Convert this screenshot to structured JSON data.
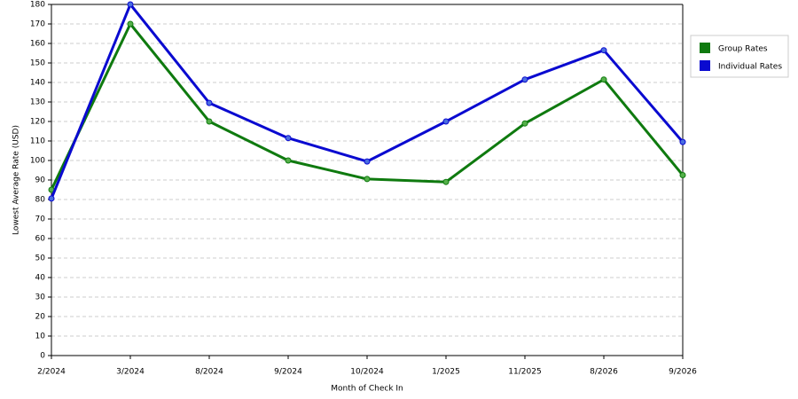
{
  "chart_data": {
    "type": "line",
    "x_label": "Month of Check In",
    "y_label": "Lowest Average Rate (USD)",
    "categories": [
      "2/2024",
      "3/2024",
      "8/2024",
      "9/2024",
      "10/2024",
      "1/2025",
      "11/2025",
      "8/2026",
      "9/2026"
    ],
    "series": [
      {
        "name": "Group Rates",
        "color": "#0f7a0f",
        "marker": "#55b04a",
        "values": [
          85,
          170,
          120,
          100,
          90.5,
          89,
          119,
          141.5,
          92.5
        ]
      },
      {
        "name": "Individual Rates",
        "color": "#0a0ad0",
        "marker": "#4a6ee0",
        "values": [
          80.5,
          180,
          129.5,
          111.5,
          99.5,
          120,
          141.5,
          156.5,
          109.5
        ]
      }
    ],
    "ylim": [
      0,
      180
    ],
    "yticks": [
      0,
      10,
      20,
      30,
      40,
      50,
      60,
      70,
      80,
      90,
      100,
      110,
      120,
      130,
      140,
      150,
      160,
      170,
      180
    ],
    "grid": true,
    "legend": "right"
  }
}
